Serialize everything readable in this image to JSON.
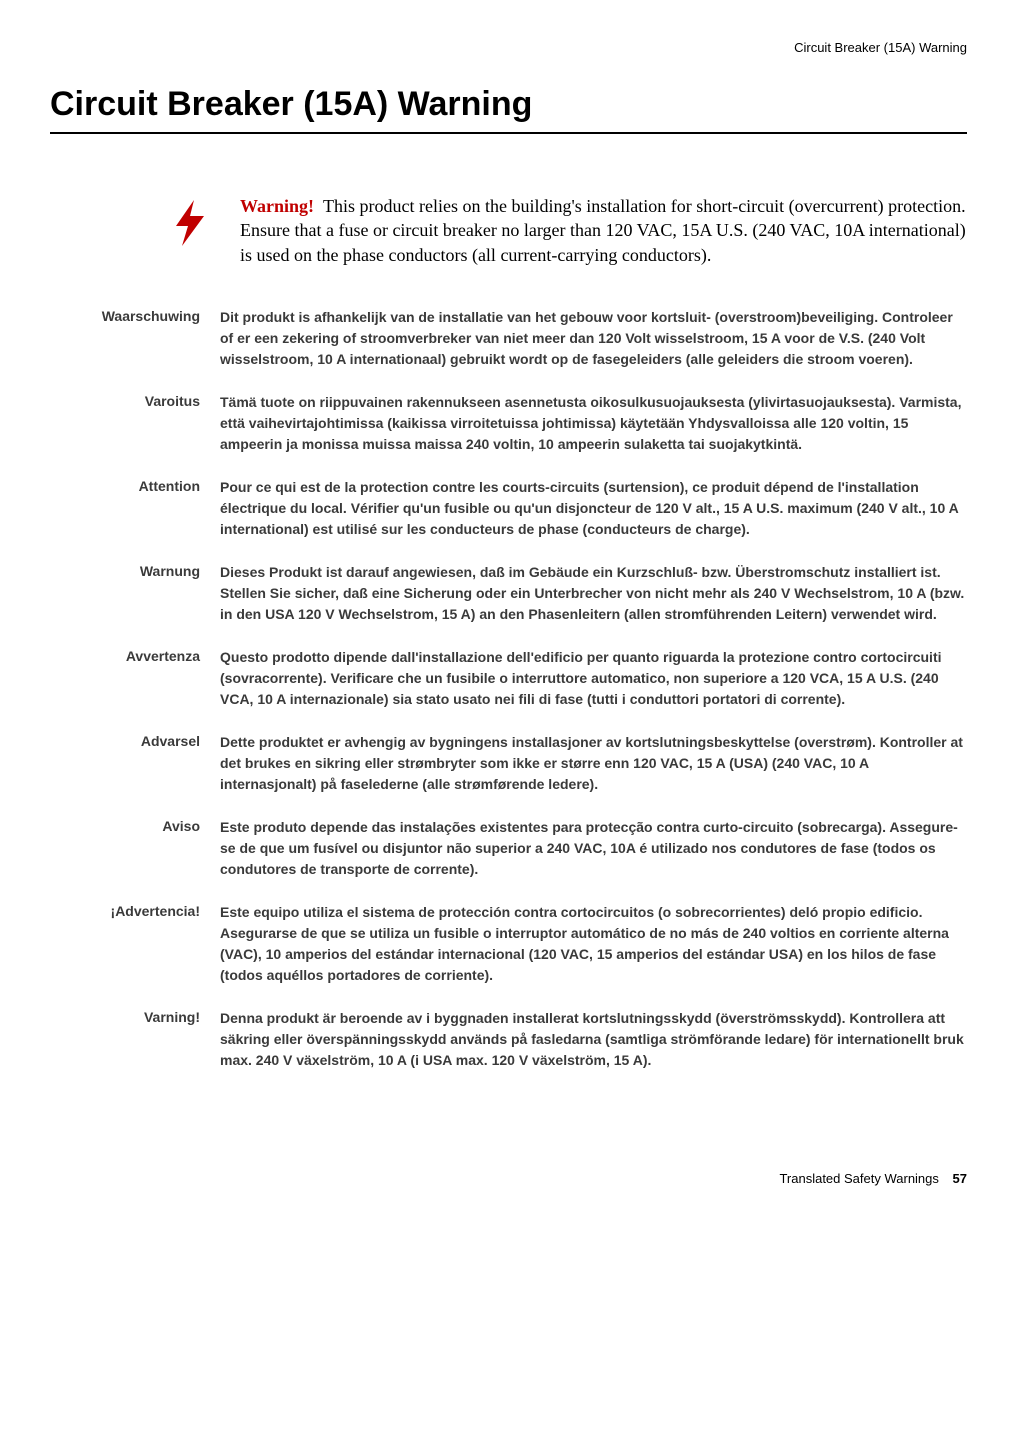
{
  "running_header": "Circuit Breaker (15A) Warning",
  "title": "Circuit Breaker (15A) Warning",
  "warning": {
    "label": "Warning!",
    "text": "This product relies on the building's installation for short-circuit (overcurrent) protection. Ensure that a fuse or circuit breaker no larger than 120 VAC, 15A U.S. (240 VAC, 10A international) is used on the phase conductors (all current-carrying conductors).",
    "icon_color": "#c00000"
  },
  "translations": [
    {
      "label": "Waarschuwing",
      "body": "Dit produkt is afhankelijk van de installatie van het gebouw voor kortsluit- (overstroom)beveiliging. Controleer of er een zekering of stroomverbreker van niet meer dan 120 Volt wisselstroom, 15 A voor de V.S. (240 Volt wisselstroom, 10 A internationaal) gebruikt wordt op de fasegeleiders (alle geleiders die stroom voeren)."
    },
    {
      "label": "Varoitus",
      "body": "Tämä tuote on riippuvainen rakennukseen asennetusta oikosulkusuojauksesta (ylivirtasuojauksesta). Varmista, että vaihevirtajohtimissa (kaikissa virroitetuissa johtimissa) käytetään Yhdysvalloissa alle 120 voltin, 15 ampeerin ja monissa muissa maissa 240 voltin, 10 ampeerin sulaketta tai suojakytkintä."
    },
    {
      "label": "Attention",
      "body": "Pour ce qui est de la protection contre les courts-circuits (surtension), ce produit dépend de l'installation électrique du local. Vérifier qu'un fusible ou qu'un disjoncteur de 120 V alt., 15 A U.S. maximum (240 V alt., 10 A international) est utilisé sur les conducteurs de phase (conducteurs de charge)."
    },
    {
      "label": "Warnung",
      "body": "Dieses Produkt ist darauf angewiesen, daß im Gebäude ein Kurzschluß- bzw. Überstromschutz installiert ist. Stellen Sie sicher, daß eine Sicherung oder ein Unterbrecher von nicht mehr als 240 V Wechselstrom, 10 A (bzw. in den USA 120 V Wechselstrom, 15 A) an den Phasenleitern (allen stromführenden Leitern) verwendet wird."
    },
    {
      "label": "Avvertenza",
      "body": "Questo prodotto dipende dall'installazione dell'edificio per quanto riguarda la protezione contro cortocircuiti (sovracorrente).  Verificare che un fusibile o interruttore automatico, non superiore a 120 VCA, 15 A U.S. (240 VCA, 10 A internazionale) sia stato usato nei fili di fase (tutti i conduttori portatori di corrente)."
    },
    {
      "label": "Advarsel",
      "body": "Dette produktet er avhengig av bygningens installasjoner av kortslutningsbeskyttelse (overstrøm). Kontroller at det brukes en sikring eller strømbryter som ikke er større enn 120 VAC, 15 A (USA) (240 VAC, 10 A internasjonalt) på faselederne (alle strømførende ledere)."
    },
    {
      "label": "Aviso",
      "body": "Este produto depende das instalações existentes para protecção contra curto-circuito (sobrecarga). Assegure-se de que um fusível ou disjuntor não superior a 240 VAC, 10A é utilizado nos condutores de fase (todos os condutores de transporte de corrente)."
    },
    {
      "label": "¡Advertencia!",
      "body": "Este equipo utiliza el sistema de protección contra cortocircuitos (o sobrecorrientes) deló propio edificio. Asegurarse de que se utiliza un fusible o interruptor automático de no más de 240 voltios en corriente alterna (VAC), 10 amperios del estándar internacional (120 VAC, 15 amperios del estándar USA) en los hilos de fase (todos aquéllos portadores de corriente)."
    },
    {
      "label": "Varning!",
      "body": "Denna produkt är beroende av i byggnaden installerat kortslutningsskydd (överströmsskydd). Kontrollera att säkring eller överspänningsskydd används på fasledarna (samtliga strömförande ledare) för internationellt bruk max. 240 V växelström, 10 A (i USA max. 120 V växelström, 15 A)."
    }
  ],
  "footer": {
    "text": "Translated Safety Warnings",
    "page": "57"
  }
}
